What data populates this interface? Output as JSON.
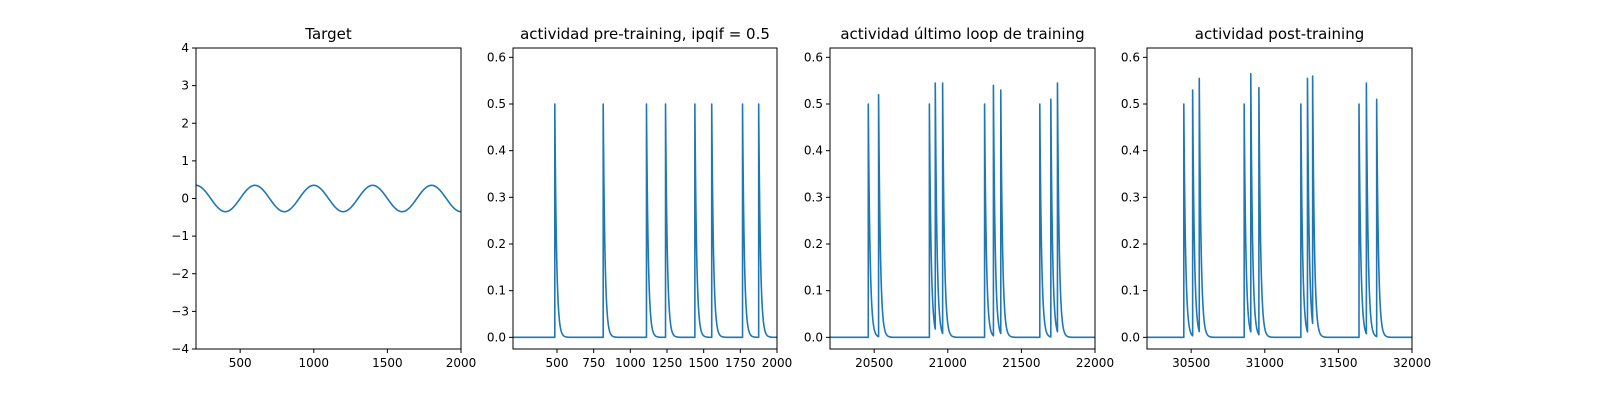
{
  "chart_data": [
    {
      "type": "line",
      "title": "Target",
      "xlim": [
        200,
        2000
      ],
      "ylim": [
        -4,
        4
      ],
      "xticks": [
        500,
        1000,
        1500,
        2000
      ],
      "xtick_labels": [
        "500",
        "1000",
        "1500",
        "2000"
      ],
      "yticks": [
        -4,
        -3,
        -2,
        -1,
        0,
        1,
        2,
        3,
        4
      ],
      "ytick_labels": [
        "−4",
        "−3",
        "−2",
        "−1",
        "0",
        "1",
        "2",
        "3",
        "4"
      ],
      "grid": false,
      "series": [
        {
          "kind": "sine",
          "amplitude": 0.35,
          "period": 400,
          "phase_zero_at": 300,
          "x_range": [
            200,
            2000
          ]
        }
      ]
    },
    {
      "type": "line",
      "title": "actividad pre-training, ipqif = 0.5",
      "xlim": [
        200,
        2000
      ],
      "ylim": [
        -0.025,
        0.62
      ],
      "xticks": [
        500,
        750,
        1000,
        1250,
        1500,
        1750,
        2000
      ],
      "xtick_labels": [
        "500",
        "750",
        "1000",
        "1250",
        "1500",
        "1750",
        "2000"
      ],
      "yticks": [
        0.0,
        0.1,
        0.2,
        0.3,
        0.4,
        0.5,
        0.6
      ],
      "ytick_labels": [
        "0.0",
        "0.1",
        "0.2",
        "0.3",
        "0.4",
        "0.5",
        "0.6"
      ],
      "grid": false,
      "series": [
        {
          "kind": "spikes",
          "x_range": [
            200,
            2000
          ],
          "decay": 12,
          "spikes": [
            [
              485,
              0.5
            ],
            [
              815,
              0.5
            ],
            [
              1110,
              0.5
            ],
            [
              1240,
              0.5
            ],
            [
              1440,
              0.5
            ],
            [
              1555,
              0.5
            ],
            [
              1765,
              0.5
            ],
            [
              1875,
              0.5
            ]
          ]
        }
      ]
    },
    {
      "type": "line",
      "title": "actividad último loop de training",
      "xlim": [
        20200,
        22000
      ],
      "ylim": [
        -0.025,
        0.62
      ],
      "xticks": [
        20500,
        21000,
        21500,
        22000
      ],
      "xtick_labels": [
        "20500",
        "21000",
        "21500",
        "22000"
      ],
      "yticks": [
        0.0,
        0.1,
        0.2,
        0.3,
        0.4,
        0.5,
        0.6
      ],
      "ytick_labels": [
        "0.0",
        "0.1",
        "0.2",
        "0.3",
        "0.4",
        "0.5",
        "0.6"
      ],
      "grid": false,
      "series": [
        {
          "kind": "spikes",
          "x_range": [
            20200,
            22000
          ],
          "decay": 12,
          "spikes": [
            [
              20460,
              0.5
            ],
            [
              20530,
              0.52
            ],
            [
              20875,
              0.5
            ],
            [
              20915,
              0.545
            ],
            [
              20965,
              0.545
            ],
            [
              21250,
              0.5
            ],
            [
              21310,
              0.54
            ],
            [
              21360,
              0.53
            ],
            [
              21625,
              0.5
            ],
            [
              21700,
              0.51
            ],
            [
              21745,
              0.545
            ]
          ]
        }
      ]
    },
    {
      "type": "line",
      "title": "actividad post-training",
      "xlim": [
        30200,
        32000
      ],
      "ylim": [
        -0.025,
        0.62
      ],
      "xticks": [
        30500,
        31000,
        31500,
        32000
      ],
      "xtick_labels": [
        "30500",
        "31000",
        "31500",
        "32000"
      ],
      "yticks": [
        0.0,
        0.1,
        0.2,
        0.3,
        0.4,
        0.5,
        0.6
      ],
      "ytick_labels": [
        "0.0",
        "0.1",
        "0.2",
        "0.3",
        "0.4",
        "0.5",
        "0.6"
      ],
      "grid": false,
      "series": [
        {
          "kind": "spikes",
          "x_range": [
            30200,
            32000
          ],
          "decay": 12,
          "spikes": [
            [
              30450,
              0.5
            ],
            [
              30510,
              0.53
            ],
            [
              30555,
              0.555
            ],
            [
              30860,
              0.5
            ],
            [
              30905,
              0.565
            ],
            [
              30960,
              0.535
            ],
            [
              31245,
              0.5
            ],
            [
              31290,
              0.555
            ],
            [
              31325,
              0.56
            ],
            [
              31640,
              0.5
            ],
            [
              31690,
              0.545
            ],
            [
              31760,
              0.51
            ]
          ]
        }
      ]
    }
  ]
}
